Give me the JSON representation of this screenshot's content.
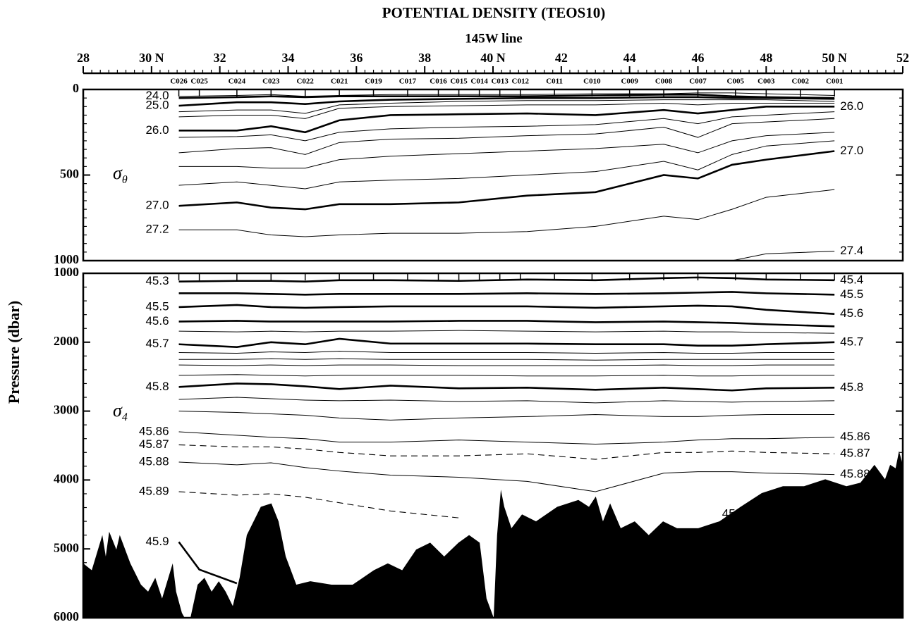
{
  "chart_data": {
    "type": "contour",
    "title": "POTENTIAL DENSITY (TEOS10)",
    "subtitle": "145W line",
    "ylabel": "Pressure (dbar)",
    "xlim": [
      28,
      52
    ],
    "xticks": [
      28,
      {
        "value": 30,
        "label": "30 N"
      },
      32,
      34,
      36,
      38,
      {
        "value": 40,
        "label": "40 N"
      },
      42,
      44,
      46,
      48,
      {
        "value": 50,
        "label": "50 N"
      },
      52
    ],
    "stations": {
      "names": [
        "C026",
        "C025",
        "C024",
        "C023",
        "C022",
        "C021",
        "C019",
        "C017",
        "C016",
        "C015",
        "C014",
        "C013",
        "C012",
        "C011",
        "C010",
        "C009",
        "C008",
        "C007",
        "C005",
        "C003",
        "C002",
        "C001"
      ],
      "x": [
        30.8,
        31.4,
        32.5,
        33.5,
        34.5,
        35.5,
        36.5,
        37.5,
        38.4,
        39.0,
        39.6,
        40.2,
        40.8,
        41.8,
        42.9,
        44.0,
        45.0,
        46.0,
        47.1,
        48.0,
        49.0,
        50.0
      ]
    },
    "panels": [
      {
        "symbol": "σ",
        "subscript": "θ",
        "ylim": [
          0,
          1000
        ],
        "yticks": [
          0,
          500,
          1000
        ],
        "x": [
          30.8,
          32.5,
          33.5,
          34.5,
          35.5,
          37,
          39,
          41,
          43,
          45,
          46,
          47,
          48,
          50
        ],
        "contours": [
          {
            "style": "thin",
            "left_label": "24.0",
            "values": [
              40,
              35,
              30,
              40,
              35,
              30,
              30,
              30,
              25,
              25,
              20,
              20,
              25,
              35
            ]
          },
          {
            "style": "thick",
            "values": [
              50,
              45,
              40,
              45,
              40,
              40,
              40,
              40,
              35,
              30,
              30,
              40,
              45,
              50
            ]
          },
          {
            "style": "thick",
            "left_label": "25.0",
            "values": [
              95,
              75,
              75,
              85,
              70,
              60,
              55,
              50,
              50,
              45,
              45,
              50,
              50,
              55
            ]
          },
          {
            "style": "thin",
            "values": [
              130,
              120,
              120,
              140,
              90,
              80,
              70,
              65,
              65,
              60,
              60,
              60,
              60,
              70
            ]
          },
          {
            "style": "thin",
            "values": [
              160,
              150,
              150,
              170,
              110,
              100,
              95,
              90,
              90,
              80,
              90,
              80,
              80,
              80
            ]
          },
          {
            "style": "thick",
            "left_label": "26.0",
            "right_label": "26.0",
            "values": [
              240,
              240,
              215,
              250,
              180,
              150,
              145,
              140,
              150,
              120,
              140,
              120,
              100,
              100
            ]
          },
          {
            "style": "thin",
            "values": [
              280,
              275,
              265,
              300,
              250,
              230,
              220,
              215,
              205,
              170,
              200,
              160,
              150,
              130
            ]
          },
          {
            "style": "thin",
            "values": [
              370,
              345,
              340,
              380,
              310,
              290,
              285,
              270,
              260,
              220,
              280,
              200,
              190,
              170
            ]
          },
          {
            "style": "thin",
            "values": [
              450,
              450,
              460,
              460,
              410,
              390,
              375,
              360,
              345,
              320,
              370,
              300,
              270,
              250
            ]
          },
          {
            "style": "thin",
            "values": [
              560,
              540,
              560,
              580,
              540,
              530,
              520,
              500,
              480,
              420,
              470,
              380,
              330,
              300
            ]
          },
          {
            "style": "thick",
            "left_label": "27.0",
            "right_label": "27.0",
            "values": [
              680,
              660,
              690,
              700,
              670,
              670,
              660,
              620,
              600,
              500,
              520,
              440,
              410,
              360
            ]
          },
          {
            "style": "thin",
            "left_label": "27.2",
            "values": [
              820,
              820,
              850,
              860,
              850,
              840,
              840,
              830,
              800,
              740,
              760,
              700,
              630,
              585
            ]
          },
          {
            "style": "thin",
            "right_label": "27.4",
            "values": [
              null,
              null,
              null,
              null,
              null,
              null,
              null,
              null,
              null,
              null,
              null,
              1000,
              960,
              945
            ]
          }
        ]
      },
      {
        "symbol": "σ",
        "subscript": "4",
        "ylim": [
          1000,
          6000
        ],
        "yticks": [
          1000,
          2000,
          3000,
          4000,
          5000,
          6000
        ],
        "x": [
          30.8,
          32.5,
          33.5,
          34.5,
          35.5,
          37,
          39,
          41,
          43,
          45,
          46,
          47,
          48,
          50
        ],
        "contours": [
          {
            "style": "thick",
            "left_label": "45.3",
            "right_label": "45.4",
            "values": [
              1120,
              1110,
              1110,
              1120,
              1100,
              1100,
              1110,
              1090,
              1100,
              1070,
              1060,
              1070,
              1090,
              1100
            ]
          },
          {
            "style": "thick",
            "right_label": "45.5",
            "values": [
              1290,
              1290,
              1300,
              1310,
              1300,
              1300,
              1300,
              1290,
              1300,
              1290,
              1280,
              1270,
              1290,
              1310
            ]
          },
          {
            "style": "thick",
            "left_label": "45.5",
            "right_label": "45.6",
            "values": [
              1490,
              1460,
              1490,
              1500,
              1490,
              1480,
              1480,
              1480,
              1500,
              1480,
              1470,
              1480,
              1530,
              1590
            ]
          },
          {
            "style": "thick",
            "left_label": "45.6",
            "values": [
              1700,
              1690,
              1700,
              1700,
              1700,
              1700,
              1690,
              1690,
              1710,
              1700,
              1710,
              1720,
              1740,
              1770
            ]
          },
          {
            "style": "thin",
            "values": [
              1840,
              1850,
              1840,
              1850,
              1840,
              1840,
              1830,
              1840,
              1850,
              1840,
              1850,
              1850,
              1860,
              1870
            ]
          },
          {
            "style": "thick",
            "left_label": "45.7",
            "right_label": "45.7",
            "values": [
              2030,
              2070,
              2000,
              2030,
              1950,
              2020,
              2020,
              2020,
              2030,
              2030,
              2050,
              2050,
              2030,
              2000
            ]
          },
          {
            "style": "thin",
            "values": [
              2150,
              2160,
              2140,
              2150,
              2130,
              2150,
              2150,
              2150,
              2160,
              2150,
              2160,
              2160,
              2150,
              2150
            ]
          },
          {
            "style": "thin",
            "values": [
              2250,
              2250,
              2240,
              2250,
              2240,
              2250,
              2250,
              2250,
              2260,
              2250,
              2250,
              2250,
              2250,
              2250
            ]
          },
          {
            "style": "thin",
            "values": [
              2330,
              2340,
              2330,
              2340,
              2330,
              2330,
              2340,
              2340,
              2340,
              2330,
              2340,
              2340,
              2330,
              2330
            ]
          },
          {
            "style": "thin",
            "values": [
              2480,
              2470,
              2480,
              2490,
              2480,
              2480,
              2480,
              2490,
              2490,
              2480,
              2490,
              2490,
              2480,
              2480
            ]
          },
          {
            "style": "thick",
            "left_label": "45.8",
            "right_label": "45.8",
            "values": [
              2650,
              2600,
              2610,
              2640,
              2680,
              2630,
              2670,
              2660,
              2690,
              2660,
              2680,
              2700,
              2670,
              2660
            ]
          },
          {
            "style": "thin",
            "values": [
              2830,
              2800,
              2820,
              2840,
              2850,
              2840,
              2860,
              2850,
              2880,
              2850,
              2860,
              2870,
              2860,
              2850
            ]
          },
          {
            "style": "thin",
            "values": [
              3000,
              3020,
              3040,
              3060,
              3100,
              3130,
              3100,
              3080,
              3050,
              3080,
              3080,
              3060,
              3050,
              3050
            ]
          },
          {
            "style": "thin",
            "left_label": "45.86",
            "right_label": "45.86",
            "values": [
              3300,
              3350,
              3380,
              3400,
              3450,
              3450,
              3420,
              3450,
              3480,
              3450,
              3420,
              3400,
              3400,
              3380
            ]
          },
          {
            "style": "dashed",
            "left_label": "45.87",
            "right_label": "45.87",
            "values": [
              3490,
              3520,
              3520,
              3550,
              3600,
              3650,
              3650,
              3620,
              3700,
              3600,
              3600,
              3580,
              3600,
              3620
            ]
          },
          {
            "style": "thin",
            "left_label": "45.88",
            "right_label": "45.88",
            "values": [
              3740,
              3780,
              3750,
              3820,
              3870,
              3930,
              3960,
              4020,
              4170,
              3900,
              3880,
              3880,
              3900,
              3920
            ]
          },
          {
            "style": "dashed",
            "left_label": "45.89",
            "mid_label": "45.89",
            "values": [
              4170,
              4220,
              4200,
              4250,
              4330,
              4450,
              4550,
              null,
              null,
              4850,
              4800,
              4630,
              4620,
              null
            ]
          },
          {
            "style": "thick",
            "left_label": "45.9",
            "x": [
              30.8,
              31.4,
              32.5
            ],
            "values": [
              4900,
              5300,
              5500
            ]
          }
        ],
        "bathymetry": {
          "color": "#000000",
          "x": [
            28.0,
            28.25,
            28.56,
            28.66,
            28.76,
            28.97,
            29.07,
            29.38,
            29.69,
            29.9,
            30.11,
            30.31,
            30.62,
            30.72,
            30.89,
            30.97,
            31.14,
            31.35,
            31.55,
            31.76,
            31.97,
            32.17,
            32.38,
            32.58,
            32.79,
            33.2,
            33.51,
            33.72,
            33.93,
            34.24,
            34.65,
            35.27,
            35.89,
            36.51,
            36.92,
            37.34,
            37.75,
            38.16,
            38.57,
            38.99,
            39.3,
            39.61,
            39.81,
            40.02,
            40.12,
            40.23,
            40.33,
            40.54,
            40.85,
            41.26,
            41.88,
            42.5,
            42.81,
            43.01,
            43.22,
            43.43,
            43.74,
            44.15,
            44.56,
            44.98,
            45.39,
            46.01,
            46.63,
            47.25,
            47.87,
            48.49,
            49.11,
            49.73,
            50.35,
            50.76,
            51.17,
            51.48,
            51.63,
            51.79,
            51.89,
            52.0
          ],
          "values": [
            5210,
            5310,
            4800,
            5110,
            4750,
            5010,
            4800,
            5210,
            5520,
            5620,
            5420,
            5720,
            5210,
            5620,
            5930,
            6000,
            6000,
            5520,
            5420,
            5620,
            5470,
            5620,
            5830,
            5420,
            4800,
            4390,
            4340,
            4600,
            5110,
            5520,
            5470,
            5520,
            5520,
            5310,
            5210,
            5310,
            5010,
            4910,
            5110,
            4910,
            4800,
            4910,
            5720,
            6000,
            4800,
            4140,
            4390,
            4700,
            4500,
            4600,
            4390,
            4290,
            4390,
            4240,
            4600,
            4340,
            4700,
            4600,
            4800,
            4600,
            4700,
            4700,
            4600,
            4390,
            4190,
            4090,
            4090,
            3990,
            4090,
            4040,
            3780,
            3990,
            3780,
            3830,
            3580,
            3780
          ]
        }
      }
    ]
  }
}
